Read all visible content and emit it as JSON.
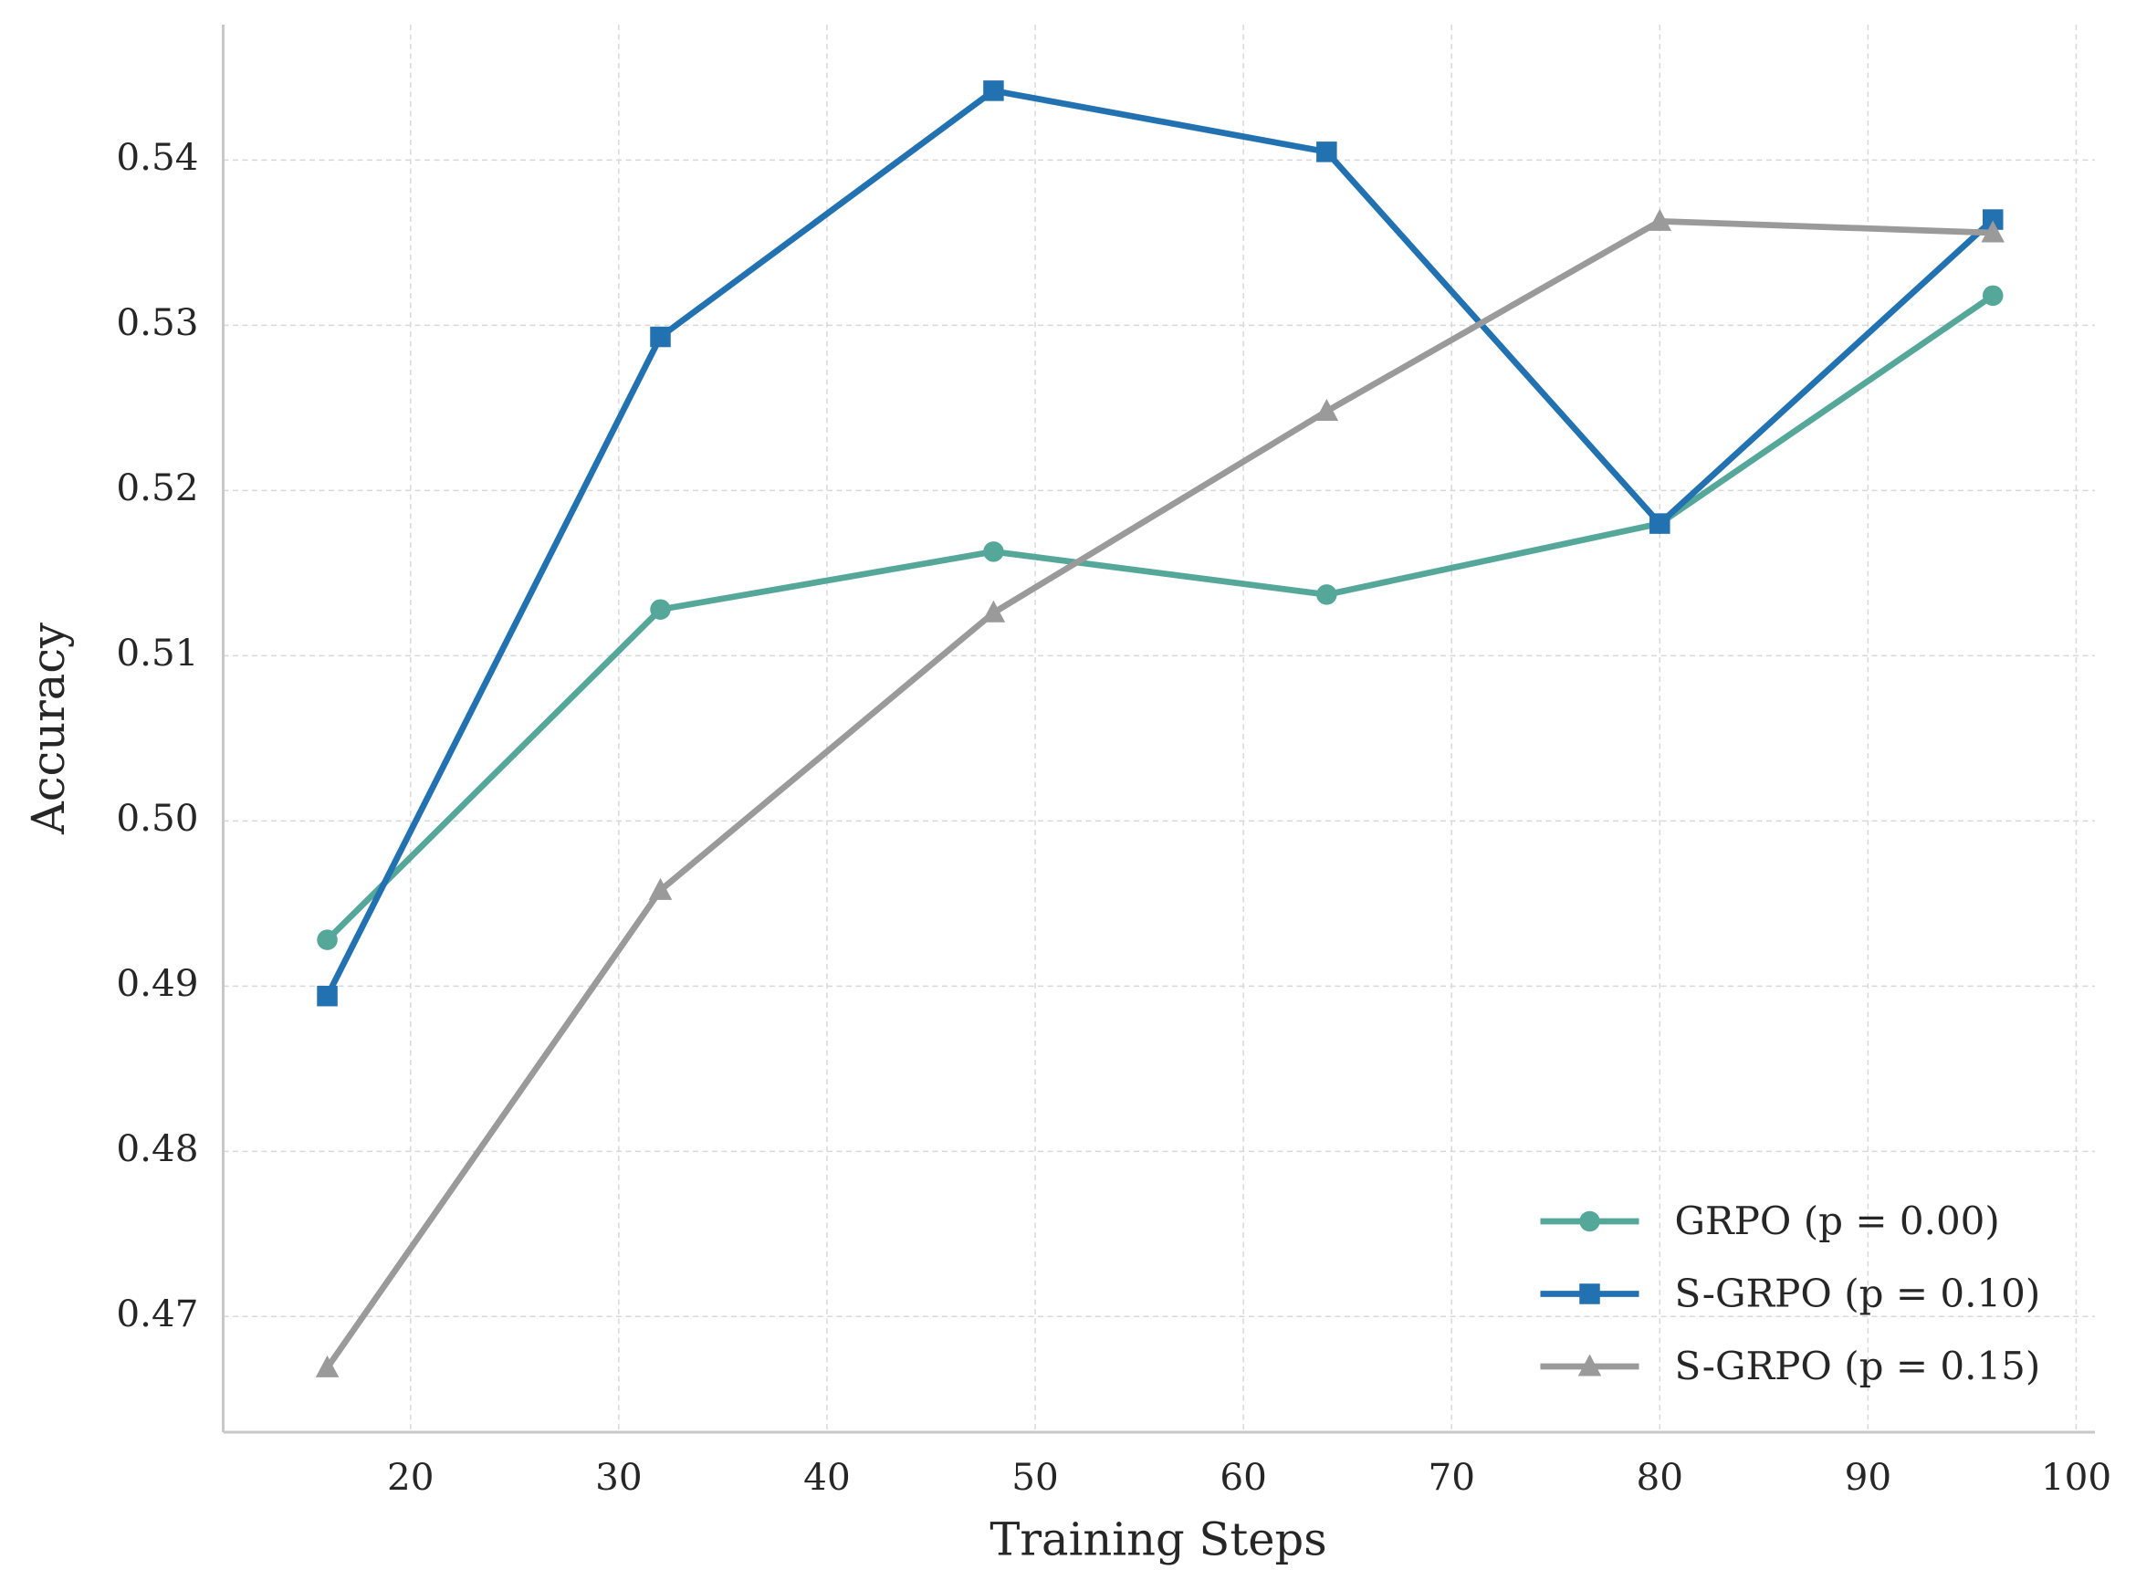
{
  "chart_data": {
    "type": "line",
    "x_label": "Training Steps",
    "y_label": "Accuracy",
    "x": [
      16,
      32,
      48,
      64,
      80,
      96
    ],
    "series": [
      {
        "name": "GRPO (p = 0.00)",
        "color": "#55a79a",
        "marker": "circle",
        "values": [
          0.4928,
          0.5128,
          0.5163,
          0.5137,
          0.518,
          0.5318
        ]
      },
      {
        "name": "S-GRPO (p = 0.10)",
        "color": "#2272b1",
        "marker": "square",
        "values": [
          0.4894,
          0.5293,
          0.5442,
          0.5405,
          0.518,
          0.5364
        ]
      },
      {
        "name": "S-GRPO (p = 0.15)",
        "color": "#9a9a9a",
        "marker": "triangle",
        "values": [
          0.4669,
          0.4958,
          0.5126,
          0.5248,
          0.5363,
          0.5356
        ]
      }
    ],
    "xlim": [
      11,
      100.9
    ],
    "xticks": [
      20,
      30,
      40,
      50,
      60,
      70,
      80,
      90,
      100
    ],
    "ylim": [
      0.463,
      0.5482
    ],
    "yticks": [
      0.47,
      0.48,
      0.49,
      {
        "value": 0.5,
        "label": "0.50"
      },
      0.51,
      0.52,
      0.53,
      0.54
    ],
    "grid": true,
    "legend": "lower right"
  }
}
